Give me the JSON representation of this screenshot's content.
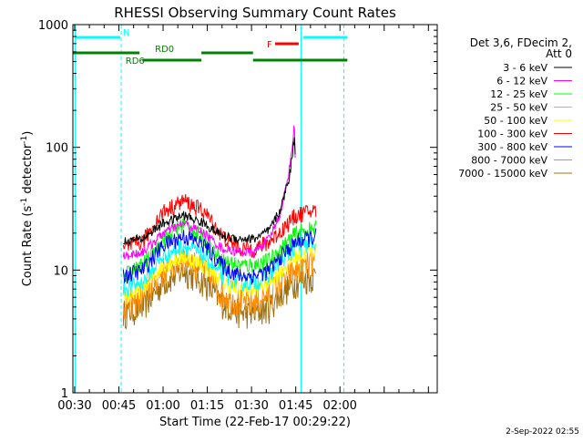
{
  "chart_data": {
    "type": "line",
    "title": "RHESSI Observing Summary Count Rates",
    "xlabel": "Start Time (22-Feb-17 00:29:22)",
    "ylabel_main": "Count Rate (s",
    "ylabel_sup1": "-1",
    "ylabel_mid": " detector",
    "ylabel_sup2": "-1",
    "ylabel_end": ")",
    "yscale": "log",
    "ylim": [
      1,
      1000
    ],
    "xlim_minutes": [
      29.4,
      153.0
    ],
    "x_ticks": [
      {
        "label": "00:30",
        "minute": 30
      },
      {
        "label": "00:45",
        "minute": 45
      },
      {
        "label": "01:00",
        "minute": 60
      },
      {
        "label": "01:15",
        "minute": 75
      },
      {
        "label": "01:30",
        "minute": 90
      },
      {
        "label": "01:45",
        "minute": 105
      },
      {
        "label": "02:00",
        "minute": 120
      }
    ],
    "y_ticks": [
      {
        "label": "1",
        "value": 1
      },
      {
        "label": "10",
        "value": 10
      },
      {
        "label": "100",
        "value": 100
      },
      {
        "label": "1000",
        "value": 1000
      }
    ],
    "legend_header": [
      "Det 3,6, FDecim 2,",
      "Att 0"
    ],
    "legend_position": "right",
    "series": [
      {
        "name": "3 - 6 keV",
        "color": "#000000",
        "knots": [
          [
            46.5,
            17
          ],
          [
            53,
            18
          ],
          [
            60,
            24
          ],
          [
            67,
            28
          ],
          [
            74,
            24
          ],
          [
            80,
            19
          ],
          [
            86,
            18
          ],
          [
            91,
            18
          ],
          [
            96,
            21
          ],
          [
            100,
            32
          ],
          [
            103,
            60
          ],
          [
            104.5,
            120
          ],
          [
            105,
            80
          ]
        ]
      },
      {
        "name": "6 - 12 keV",
        "color": "#ff00ff",
        "knots": [
          [
            46.5,
            13
          ],
          [
            53,
            14
          ],
          [
            60,
            20
          ],
          [
            67,
            24
          ],
          [
            74,
            20
          ],
          [
            80,
            15
          ],
          [
            86,
            14
          ],
          [
            91,
            14
          ],
          [
            96,
            18
          ],
          [
            100,
            30
          ],
          [
            103,
            70
          ],
          [
            104.5,
            150
          ],
          [
            105,
            60
          ]
        ]
      },
      {
        "name": "12 - 25 keV",
        "color": "#00ff00",
        "knots": [
          [
            46.5,
            9
          ],
          [
            53,
            11
          ],
          [
            60,
            18
          ],
          [
            67,
            24
          ],
          [
            74,
            18
          ],
          [
            80,
            12
          ],
          [
            86,
            11
          ],
          [
            91,
            11
          ],
          [
            96,
            12
          ],
          [
            100,
            15
          ],
          [
            105,
            20
          ],
          [
            112,
            22
          ]
        ]
      },
      {
        "name": "25 - 50 keV",
        "color": "#00ffff",
        "knots": [
          [
            46.5,
            7
          ],
          [
            53,
            8
          ],
          [
            60,
            13
          ],
          [
            67,
            16
          ],
          [
            74,
            13
          ],
          [
            80,
            9
          ],
          [
            86,
            8
          ],
          [
            91,
            8
          ],
          [
            96,
            9
          ],
          [
            100,
            12
          ],
          [
            105,
            15
          ],
          [
            112,
            17
          ]
        ]
      },
      {
        "name": "50 - 100 keV",
        "color": "#ffff00",
        "knots": [
          [
            46.5,
            6
          ],
          [
            53,
            7
          ],
          [
            60,
            11
          ],
          [
            67,
            13
          ],
          [
            74,
            11
          ],
          [
            80,
            8
          ],
          [
            86,
            7
          ],
          [
            91,
            7
          ],
          [
            96,
            8
          ],
          [
            100,
            10
          ],
          [
            105,
            13
          ],
          [
            112,
            15
          ]
        ]
      },
      {
        "name": "100 - 300 keV",
        "color": "#ff0000",
        "knots": [
          [
            46.5,
            15
          ],
          [
            53,
            17
          ],
          [
            60,
            30
          ],
          [
            67,
            37
          ],
          [
            74,
            30
          ],
          [
            80,
            19
          ],
          [
            86,
            15
          ],
          [
            91,
            15
          ],
          [
            96,
            17
          ],
          [
            100,
            21
          ],
          [
            105,
            28
          ],
          [
            112,
            31
          ]
        ]
      },
      {
        "name": "300 - 800 keV",
        "color": "#0000ff",
        "knots": [
          [
            46.5,
            9
          ],
          [
            53,
            10
          ],
          [
            60,
            16
          ],
          [
            67,
            19
          ],
          [
            74,
            16
          ],
          [
            80,
            11
          ],
          [
            86,
            9
          ],
          [
            91,
            9
          ],
          [
            96,
            10
          ],
          [
            100,
            13
          ],
          [
            105,
            17
          ],
          [
            112,
            19
          ]
        ]
      },
      {
        "name": "800 - 7000 keV",
        "color": "#ff8c00",
        "knots": [
          [
            46.5,
            5
          ],
          [
            53,
            6
          ],
          [
            60,
            10
          ],
          [
            67,
            13
          ],
          [
            74,
            10
          ],
          [
            80,
            6.5
          ],
          [
            86,
            5.5
          ],
          [
            91,
            5.5
          ],
          [
            96,
            6.5
          ],
          [
            100,
            8
          ],
          [
            105,
            10
          ],
          [
            112,
            12
          ]
        ]
      },
      {
        "name": "7000 - 15000 keV",
        "color": "#a07010",
        "knots": [
          [
            46.5,
            4.5
          ],
          [
            53,
            5
          ],
          [
            60,
            8
          ],
          [
            67,
            10
          ],
          [
            74,
            8
          ],
          [
            80,
            5.5
          ],
          [
            86,
            4.5
          ],
          [
            91,
            4.5
          ],
          [
            96,
            5
          ],
          [
            100,
            6.5
          ],
          [
            105,
            8
          ],
          [
            112,
            9
          ]
        ]
      }
    ],
    "flag_bars": [
      {
        "label": "N",
        "color": "#00ffff",
        "row": 0,
        "segments": [
          [
            30,
            45.5
          ],
          [
            107.5,
            122.5
          ]
        ]
      },
      {
        "label": "F",
        "color": "#ff0000",
        "row": 1,
        "segments": [
          [
            98,
            106
          ]
        ]
      },
      {
        "label": "RD0",
        "color": "#008000",
        "row": 2,
        "segments": [
          [
            29.5,
            52
          ],
          [
            73,
            90.5
          ]
        ]
      },
      {
        "label": "RD6",
        "color": "#008000",
        "row": 3,
        "segments": [
          [
            53,
            73
          ],
          [
            90.5,
            122.5
          ]
        ]
      }
    ],
    "vlines_solid_minutes": [
      30.2,
      106.8
    ],
    "vlines_dashed_minutes": [
      45.8,
      121.3
    ]
  },
  "footer": {
    "timestamp": "2-Sep-2022 02:55"
  }
}
